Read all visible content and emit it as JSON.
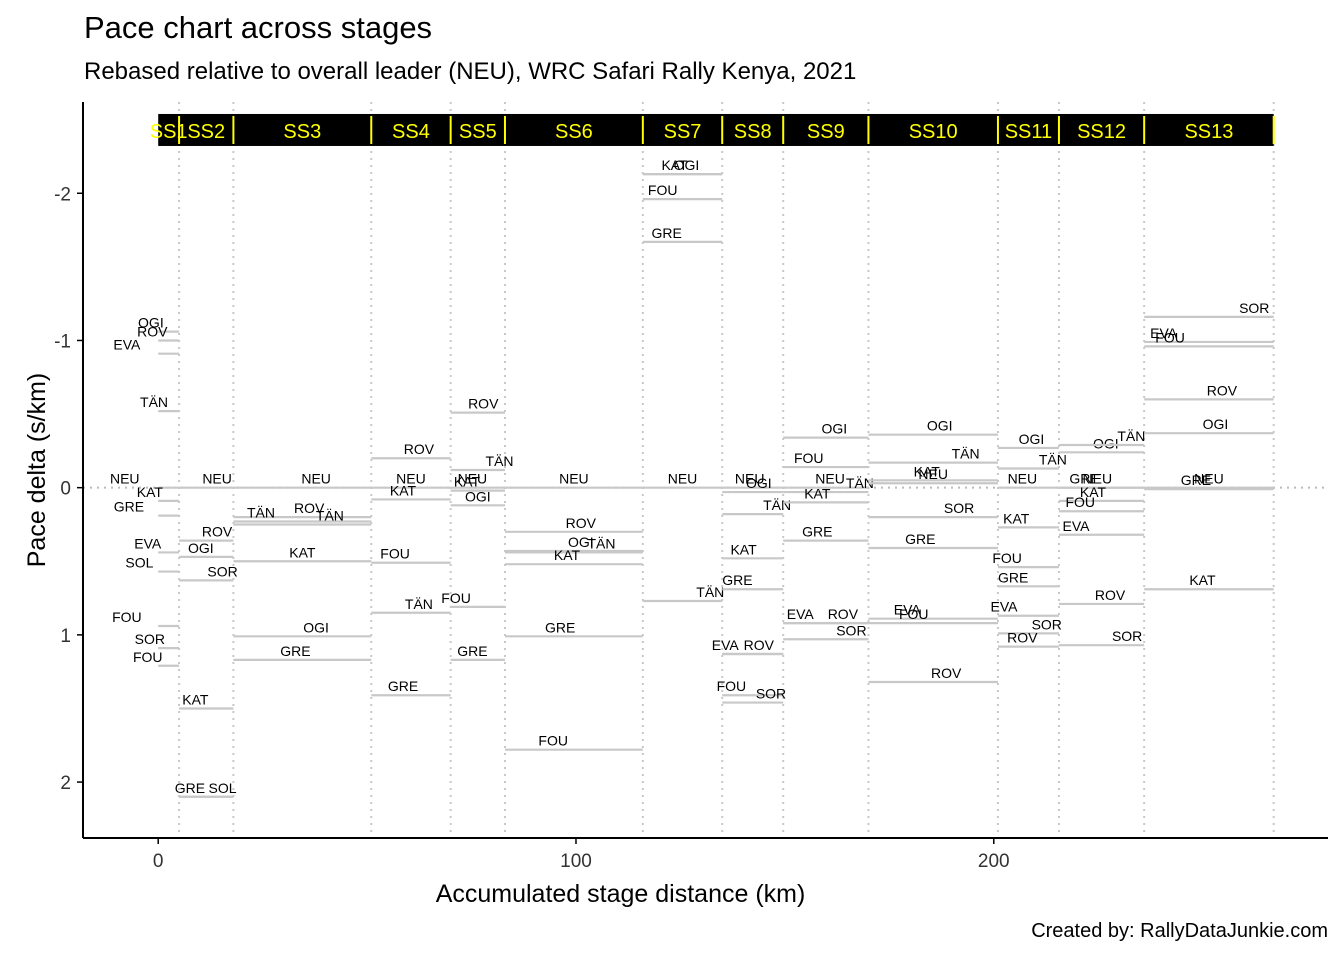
{
  "chart_data": {
    "type": "line",
    "title": "Pace chart across stages",
    "subtitle": "Rebased relative to overall leader (NEU), WRC Safari Rally Kenya, 2021",
    "caption": "Created by: RallyDataJunkie.com",
    "xlabel": "Accumulated stage distance (km)",
    "ylabel": "Pace delta (s/km)",
    "xlim": [
      -18,
      280
    ],
    "ylim": [
      -2.62,
      2.38
    ],
    "y_reversed": true,
    "x_ticks": [
      0,
      100,
      200
    ],
    "y_ticks": [
      -2,
      -1,
      0,
      1,
      2
    ],
    "y_tick_labels": [
      "-2",
      "-1",
      "0",
      "1",
      "2"
    ],
    "grid": false,
    "reference_line": 0,
    "stage_band_y": -2.43,
    "colors": {
      "band": "#000000",
      "band_text": "#ffff00",
      "segment": "#c8c8c8",
      "ref": "#bbbbbb"
    },
    "stages": [
      {
        "name": "SS1",
        "start": 0,
        "end": 5
      },
      {
        "name": "SS2",
        "start": 5,
        "end": 18
      },
      {
        "name": "SS3",
        "start": 18,
        "end": 51
      },
      {
        "name": "SS4",
        "start": 51,
        "end": 70
      },
      {
        "name": "SS5",
        "start": 70,
        "end": 83
      },
      {
        "name": "SS6",
        "start": 83,
        "end": 116
      },
      {
        "name": "SS7",
        "start": 116,
        "end": 135
      },
      {
        "name": "SS8",
        "start": 135,
        "end": 149.6
      },
      {
        "name": "SS9",
        "start": 149.6,
        "end": 170
      },
      {
        "name": "SS10",
        "start": 170,
        "end": 201
      },
      {
        "name": "SS11",
        "start": 201,
        "end": 215.6
      },
      {
        "name": "SS12",
        "start": 215.6,
        "end": 236
      },
      {
        "name": "SS13",
        "start": 236,
        "end": 267
      }
    ],
    "series": [
      {
        "stage": "SS1",
        "pts": [
          [
            "OGI",
            -1.06,
            -0.35
          ],
          [
            "ROV",
            -1.0,
            -0.28
          ],
          [
            "EVA",
            -0.91,
            -1.5
          ],
          [
            "TÄN",
            -0.52,
            -0.2
          ],
          [
            "NEU",
            0,
            -1.6
          ],
          [
            "KAT",
            0.09,
            -0.4
          ],
          [
            "GRE",
            0.19,
            -1.4
          ],
          [
            "EVA",
            0.44,
            -0.5
          ],
          [
            "SOL",
            0.57,
            -0.9
          ],
          [
            "FOU",
            0.94,
            -1.5
          ],
          [
            "SOR",
            1.09,
            -0.4
          ],
          [
            "FOU",
            1.21,
            -0.5
          ]
        ]
      },
      {
        "stage": "SS2",
        "pts": [
          [
            "NEU",
            0,
            0.7
          ],
          [
            "ROV",
            0.36,
            0.7
          ],
          [
            "OGI",
            0.47,
            0.4
          ],
          [
            "SOR",
            0.63,
            0.8
          ],
          [
            "KAT",
            1.5,
            0.3
          ],
          [
            "GRE",
            2.1,
            0.2
          ],
          [
            "SOL",
            2.1,
            0.8
          ]
        ]
      },
      {
        "stage": "SS3",
        "pts": [
          [
            "NEU",
            0,
            0.6
          ],
          [
            "ROV",
            0.2,
            0.55
          ],
          [
            "TÄN",
            0.23,
            0.2
          ],
          [
            "TÄN",
            0.25,
            0.7
          ],
          [
            "KAT",
            0.5,
            0.5
          ],
          [
            "OGI",
            1.01,
            0.6
          ],
          [
            "GRE",
            1.17,
            0.45
          ]
        ]
      },
      {
        "stage": "SS4",
        "pts": [
          [
            "ROV",
            -0.2,
            0.6
          ],
          [
            "NEU",
            0,
            0.5
          ],
          [
            "KAT",
            0.08,
            0.4
          ],
          [
            "FOU",
            0.51,
            0.3
          ],
          [
            "TÄN",
            0.85,
            0.6
          ],
          [
            "GRE",
            1.41,
            0.4
          ]
        ]
      },
      {
        "stage": "SS5",
        "pts": [
          [
            "ROV",
            -0.51,
            0.6
          ],
          [
            "TÄN",
            -0.12,
            0.9
          ],
          [
            "NEU",
            0,
            0.4
          ],
          [
            "KAT",
            0.02,
            0.3
          ],
          [
            "OGI",
            0.12,
            0.5
          ],
          [
            "FOU",
            0.81,
            0.1
          ],
          [
            "GRE",
            1.17,
            0.4
          ]
        ]
      },
      {
        "stage": "SS6",
        "pts": [
          [
            "NEU",
            0,
            0.5
          ],
          [
            "ROV",
            0.3,
            0.55
          ],
          [
            "OGI",
            0.43,
            0.55
          ],
          [
            "TÄN",
            0.44,
            0.7
          ],
          [
            "KAT",
            0.52,
            0.45
          ],
          [
            "GRE",
            1.01,
            0.4
          ],
          [
            "FOU",
            1.78,
            0.35
          ]
        ]
      },
      {
        "stage": "SS7",
        "pts": [
          [
            "KAT",
            -2.13,
            0.4
          ],
          [
            "OGI",
            -2.13,
            0.55
          ],
          [
            "FOU",
            -1.96,
            0.25
          ],
          [
            "GRE",
            -1.67,
            0.3
          ],
          [
            "NEU",
            0,
            0.5
          ],
          [
            "TÄN",
            0.77,
            0.85
          ]
        ]
      },
      {
        "stage": "SS8",
        "pts": [
          [
            "NEU",
            0,
            0.45
          ],
          [
            "OGI",
            0.03,
            0.6
          ],
          [
            "TÄN",
            0.18,
            0.9
          ],
          [
            "KAT",
            0.48,
            0.35
          ],
          [
            "GRE",
            0.69,
            0.25
          ],
          [
            "EVA",
            1.13,
            0.05
          ],
          [
            "ROV",
            1.13,
            0.6
          ],
          [
            "FOU",
            1.41,
            0.15
          ],
          [
            "SOR",
            1.46,
            0.8
          ]
        ]
      },
      {
        "stage": "SS9",
        "pts": [
          [
            "OGI",
            -0.34,
            0.6
          ],
          [
            "FOU",
            -0.14,
            0.3
          ],
          [
            "NEU",
            0,
            0.55
          ],
          [
            "TÄN",
            0.03,
            0.9
          ],
          [
            "KAT",
            0.1,
            0.4
          ],
          [
            "GRE",
            0.36,
            0.4
          ],
          [
            "EVA",
            0.92,
            0.2
          ],
          [
            "ROV",
            0.92,
            0.7
          ],
          [
            "SOR",
            1.03,
            0.8
          ]
        ]
      },
      {
        "stage": "SS10",
        "pts": [
          [
            "OGI",
            -0.36,
            0.55
          ],
          [
            "TÄN",
            -0.17,
            0.75
          ],
          [
            "KAT",
            -0.05,
            0.45
          ],
          [
            "NEU",
            -0.03,
            0.5
          ],
          [
            "SOR",
            0.2,
            0.7
          ],
          [
            "GRE",
            0.41,
            0.4
          ],
          [
            "EVA",
            0.89,
            0.3
          ],
          [
            "FOU",
            0.92,
            0.35
          ],
          [
            "ROV",
            1.32,
            0.6
          ]
        ]
      },
      {
        "stage": "SS11",
        "pts": [
          [
            "OGI",
            -0.27,
            0.55
          ],
          [
            "TÄN",
            -0.13,
            0.9
          ],
          [
            "NEU",
            0,
            0.4
          ],
          [
            "KAT",
            0.27,
            0.3
          ],
          [
            "FOU",
            0.54,
            0.15
          ],
          [
            "GRE",
            0.67,
            0.25
          ],
          [
            "EVA",
            0.87,
            0.1
          ],
          [
            "SOR",
            0.99,
            0.8
          ],
          [
            "ROV",
            1.08,
            0.4
          ]
        ]
      },
      {
        "stage": "SS12",
        "pts": [
          [
            "OGI",
            -0.24,
            0.55
          ],
          [
            "TÄN",
            -0.29,
            0.85
          ],
          [
            "GRE",
            0,
            0.3
          ],
          [
            "NEU",
            0,
            0.45
          ],
          [
            "KAT",
            0.09,
            0.4
          ],
          [
            "FOU",
            0.16,
            0.25
          ],
          [
            "EVA",
            0.32,
            0.2
          ],
          [
            "ROV",
            0.79,
            0.6
          ],
          [
            "SOR",
            1.07,
            0.8
          ]
        ]
      },
      {
        "stage": "SS13",
        "pts": [
          [
            "SOR",
            -1.16,
            0.85
          ],
          [
            "EVA",
            -0.99,
            0.15
          ],
          [
            "FOU",
            -0.96,
            0.2
          ],
          [
            "ROV",
            -0.6,
            0.6
          ],
          [
            "OGI",
            -0.37,
            0.55
          ],
          [
            "NEU",
            0,
            0.5
          ],
          [
            "GRE",
            0.01,
            0.4
          ],
          [
            "KAT",
            0.69,
            0.45
          ]
        ]
      }
    ]
  }
}
